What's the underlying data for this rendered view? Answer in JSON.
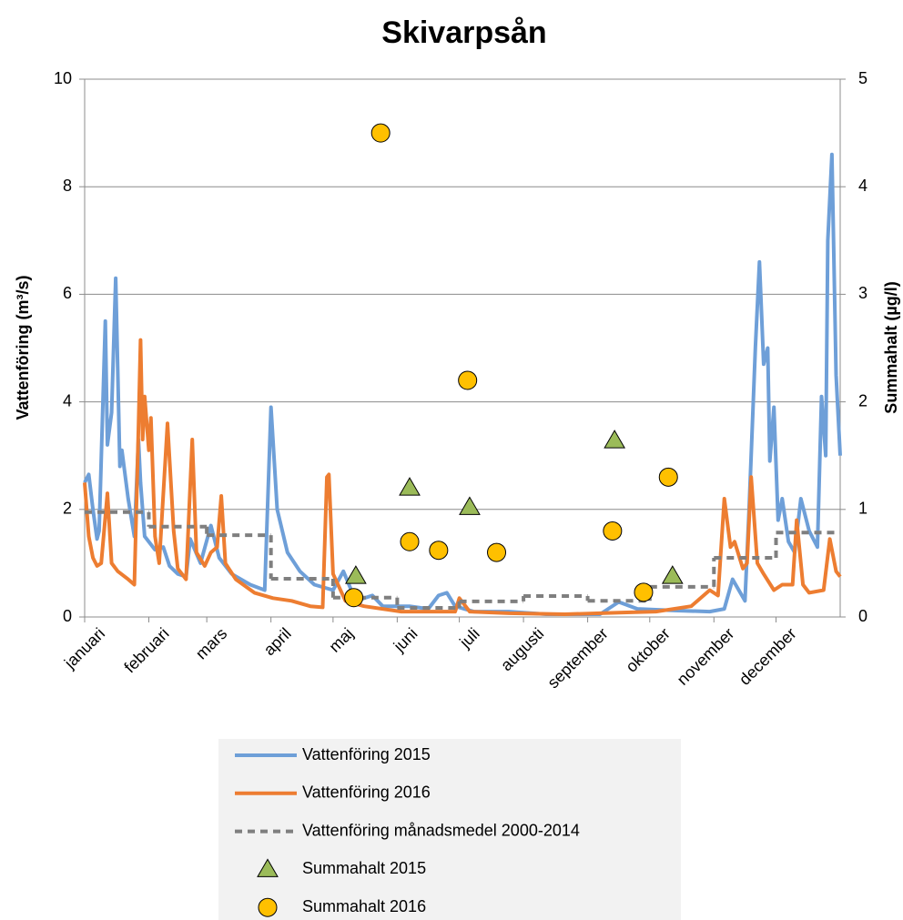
{
  "chart_data": {
    "type": "line",
    "title": "Skivarpsån",
    "y_label": "Vattenföring (m³/s)",
    "y2_label": "Summahalt (µg/l)",
    "xlim": [
      0,
      365
    ],
    "xticks": [
      {
        "value": 0,
        "label": "januari"
      },
      {
        "value": 31,
        "label": "februari"
      },
      {
        "value": 59,
        "label": "mars"
      },
      {
        "value": 90,
        "label": "april"
      },
      {
        "value": 120,
        "label": "maj"
      },
      {
        "value": 151,
        "label": "juni"
      },
      {
        "value": 181,
        "label": "juli"
      },
      {
        "value": 212,
        "label": "augusti"
      },
      {
        "value": 243,
        "label": "september"
      },
      {
        "value": 273,
        "label": "oktober"
      },
      {
        "value": 304,
        "label": "november"
      },
      {
        "value": 334,
        "label": "december"
      }
    ],
    "ylim": [
      0,
      10
    ],
    "yticks": [
      0,
      2,
      4,
      6,
      8,
      10
    ],
    "y2lim": [
      0,
      5
    ],
    "y2ticks": [
      0,
      1,
      2,
      3,
      4,
      5
    ],
    "grid": true,
    "legend": "bottom",
    "series": [
      {
        "name": "Vattenföring 2015",
        "color": "#6e9fd8",
        "type": "line",
        "x": [
          0,
          2,
          4,
          6,
          7,
          10,
          11,
          13,
          15,
          17,
          18,
          21,
          24,
          26,
          27,
          29,
          34,
          38,
          41,
          45,
          49,
          51,
          56,
          61,
          65,
          71,
          80,
          87,
          90,
          93,
          98,
          104,
          111,
          120,
          125,
          131,
          139,
          144,
          157,
          166,
          171,
          175,
          179,
          188,
          205,
          223,
          241,
          249,
          258,
          267,
          285,
          302,
          309,
          313,
          319,
          321,
          324,
          326,
          328,
          330,
          331,
          333,
          335,
          337,
          340,
          343,
          346,
          350,
          354,
          356,
          358,
          359,
          361,
          363,
          365
        ],
        "values": [
          2.5,
          2.65,
          2.0,
          1.45,
          1.6,
          5.5,
          3.2,
          3.8,
          6.3,
          2.8,
          3.1,
          2.2,
          1.5,
          3.3,
          2.5,
          1.5,
          1.25,
          1.3,
          0.95,
          0.8,
          0.75,
          1.45,
          1.0,
          1.7,
          1.1,
          0.8,
          0.6,
          0.5,
          3.9,
          2.0,
          1.2,
          0.85,
          0.6,
          0.5,
          0.85,
          0.3,
          0.4,
          0.2,
          0.2,
          0.15,
          0.4,
          0.45,
          0.2,
          0.1,
          0.1,
          0.05,
          0.05,
          0.05,
          0.28,
          0.15,
          0.12,
          0.1,
          0.15,
          0.7,
          0.3,
          2.0,
          5.0,
          6.6,
          4.7,
          5.0,
          2.9,
          3.9,
          1.8,
          2.2,
          1.4,
          1.2,
          2.2,
          1.6,
          1.3,
          4.1,
          3.0,
          7.0,
          8.6,
          4.5,
          3.0
        ]
      },
      {
        "name": "Vattenföring 2016",
        "color": "#ed7d31",
        "type": "line",
        "x": [
          0,
          2,
          4,
          6,
          8,
          11,
          13,
          16,
          21,
          24,
          26,
          27,
          28,
          29,
          31,
          32,
          34,
          36,
          40,
          43,
          45,
          49,
          52,
          54,
          58,
          61,
          64,
          66,
          68,
          73,
          82,
          91,
          100,
          109,
          115,
          117,
          118,
          120,
          126,
          135,
          153,
          166,
          179,
          181,
          186,
          205,
          232,
          258,
          276,
          293,
          302,
          306,
          309,
          312,
          314,
          318,
          320,
          322,
          325,
          328,
          333,
          337,
          342,
          344,
          347,
          350,
          357,
          360,
          363,
          365
        ],
        "values": [
          2.5,
          1.5,
          1.1,
          0.95,
          1.0,
          2.3,
          1.0,
          0.85,
          0.7,
          0.6,
          3.5,
          5.15,
          3.3,
          4.1,
          3.1,
          3.7,
          1.5,
          1.0,
          3.6,
          1.6,
          0.9,
          0.7,
          3.3,
          1.2,
          0.95,
          1.2,
          1.3,
          2.25,
          1.0,
          0.7,
          0.45,
          0.35,
          0.3,
          0.2,
          0.18,
          2.6,
          2.65,
          0.8,
          0.3,
          0.2,
          0.1,
          0.1,
          0.1,
          0.35,
          0.1,
          0.07,
          0.05,
          0.08,
          0.1,
          0.2,
          0.5,
          0.4,
          2.2,
          1.3,
          1.4,
          0.9,
          1.0,
          2.6,
          1.0,
          0.8,
          0.5,
          0.6,
          0.6,
          1.8,
          0.6,
          0.45,
          0.5,
          1.45,
          0.85,
          0.75
        ]
      },
      {
        "name": "Vattenföring månadsmedel 2000-2014",
        "color": "#7f7f7f",
        "type": "step",
        "dash": true,
        "x": [
          0,
          31,
          59,
          90,
          120,
          151,
          181,
          212,
          243,
          273,
          304,
          334
        ],
        "values": [
          1.95,
          1.68,
          1.52,
          0.71,
          0.36,
          0.17,
          0.29,
          0.39,
          0.3,
          0.56,
          1.1,
          1.57
        ]
      },
      {
        "name": "Summahalt 2015",
        "color": "#9bbb59",
        "type": "scatter",
        "marker": "triangle",
        "axis": "y2",
        "x": [
          131,
          157,
          186,
          256,
          284
        ],
        "values": [
          0.38,
          1.2,
          1.02,
          1.64,
          0.38
        ]
      },
      {
        "name": "Summahalt 2016",
        "color": "#ffc000",
        "type": "scatter",
        "marker": "circle",
        "axis": "y2",
        "x": [
          130,
          143,
          157,
          171,
          185,
          199,
          255,
          270,
          282
        ],
        "values": [
          0.18,
          4.5,
          0.7,
          0.62,
          2.2,
          0.6,
          0.8,
          0.23,
          1.3
        ]
      }
    ]
  }
}
